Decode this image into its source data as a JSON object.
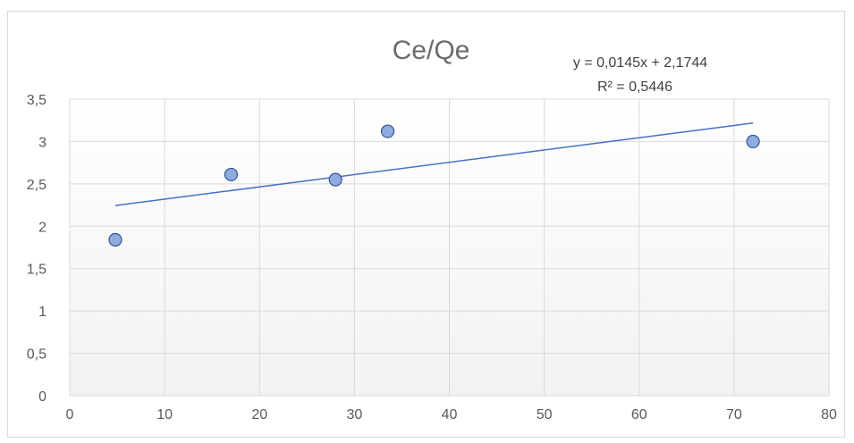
{
  "chart_data": {
    "type": "scatter",
    "title": "Ce/Qe",
    "xlabel": "",
    "ylabel": "",
    "xlim": [
      0,
      80
    ],
    "ylim": [
      0,
      3.5
    ],
    "x_ticks": [
      "0",
      "10",
      "20",
      "30",
      "40",
      "50",
      "60",
      "70",
      "80"
    ],
    "y_ticks": [
      "0",
      "0,5",
      "1",
      "1,5",
      "2",
      "2,5",
      "3",
      "3,5"
    ],
    "grid": true,
    "legend": "none",
    "series": [
      {
        "points": [
          {
            "x": 4.8,
            "y": 1.84
          },
          {
            "x": 17.0,
            "y": 2.61
          },
          {
            "x": 28.0,
            "y": 2.55
          },
          {
            "x": 33.5,
            "y": 3.12
          },
          {
            "x": 72.0,
            "y": 3.0
          }
        ]
      }
    ],
    "trendline": {
      "x_start": 4.8,
      "x_end": 72.0,
      "slope": 0.0145,
      "intercept": 2.1744,
      "equation_label": "y = 0,0145x + 2,1744",
      "r2_label": "R² = 0,5446"
    },
    "colors": {
      "marker_fill": "#8faadc",
      "marker_stroke": "#2f5597",
      "trendline": "#4472c4",
      "grid": "#d9d9d9",
      "plot_background_bottom": "#f2f2f2"
    }
  }
}
